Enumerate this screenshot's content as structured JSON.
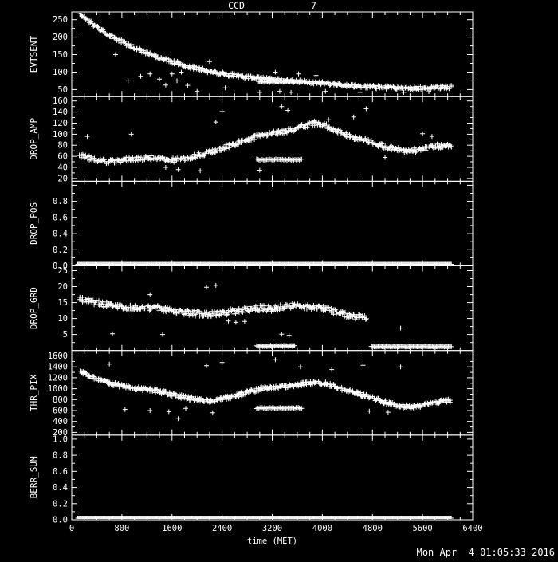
{
  "colors": {
    "background": "#000000",
    "foreground": "#ffffff"
  },
  "chart_data": {
    "type": "scatter",
    "title": "CCD            7",
    "xlabel": "time (MET)",
    "timestamp": "Mon Apr  4 01:05:33 2016",
    "x_range": [
      0,
      6400
    ],
    "x_ticks": [
      0,
      800,
      1600,
      2400,
      3200,
      4000,
      4800,
      5600,
      6400
    ],
    "marker": "plus",
    "grid": false,
    "legend": false,
    "render": {
      "step": 25,
      "per_step": 2,
      "marker_arm": 3
    },
    "panels": [
      {
        "name": "EVTSENT",
        "ylim": [
          30,
          272
        ],
        "yticks": [
          50,
          100,
          150,
          200,
          250
        ],
        "ytick_labels": [
          "50",
          "100",
          "150",
          "200",
          "250"
        ],
        "jitter": 5,
        "trend": [
          [
            130,
            268
          ],
          [
            250,
            248
          ],
          [
            400,
            228
          ],
          [
            550,
            210
          ],
          [
            700,
            196
          ],
          [
            850,
            183
          ],
          [
            1000,
            170
          ],
          [
            1150,
            158
          ],
          [
            1300,
            148
          ],
          [
            1450,
            138
          ],
          [
            1600,
            130
          ],
          [
            1750,
            122
          ],
          [
            1900,
            115
          ],
          [
            2050,
            108
          ],
          [
            2200,
            102
          ],
          [
            2350,
            97
          ],
          [
            2500,
            93
          ],
          [
            2650,
            89
          ],
          [
            2800,
            86
          ],
          [
            2950,
            83
          ],
          [
            3100,
            80
          ],
          [
            3250,
            78
          ],
          [
            3400,
            76
          ],
          [
            3550,
            74
          ],
          [
            3700,
            72
          ],
          [
            3850,
            70
          ],
          [
            4000,
            68
          ],
          [
            4150,
            66
          ],
          [
            4300,
            64
          ],
          [
            4450,
            62
          ],
          [
            4600,
            60
          ],
          [
            4750,
            58
          ],
          [
            4900,
            57
          ],
          [
            5050,
            56
          ],
          [
            5200,
            55
          ],
          [
            5350,
            54
          ],
          [
            5500,
            54
          ],
          [
            5650,
            55
          ],
          [
            5800,
            56
          ],
          [
            5950,
            57
          ],
          [
            6060,
            58
          ]
        ],
        "outliers": [
          [
            700,
            150
          ],
          [
            900,
            75
          ],
          [
            1100,
            88
          ],
          [
            1250,
            95
          ],
          [
            1400,
            80
          ],
          [
            1500,
            63
          ],
          [
            1600,
            95
          ],
          [
            1680,
            75
          ],
          [
            1750,
            100
          ],
          [
            1850,
            62
          ],
          [
            2000,
            45
          ],
          [
            2200,
            130
          ],
          [
            2450,
            55
          ],
          [
            3000,
            42
          ],
          [
            3250,
            100
          ],
          [
            3320,
            45
          ],
          [
            3500,
            42
          ],
          [
            3620,
            95
          ],
          [
            3900,
            90
          ],
          [
            4050,
            45
          ],
          [
            4600,
            42
          ],
          [
            5300,
            42
          ],
          [
            5700,
            44
          ]
        ],
        "bands": [
          {
            "x0": 2980,
            "x1": 3640,
            "y": 72,
            "step": 18,
            "jitter": 1.5
          }
        ]
      },
      {
        "name": "DROP_AMP",
        "ylim": [
          15,
          168
        ],
        "yticks": [
          20,
          40,
          60,
          80,
          100,
          120,
          140,
          160
        ],
        "ytick_labels": [
          "20",
          "40",
          "60",
          "80",
          "100",
          "120",
          "140",
          "160"
        ],
        "jitter": 4,
        "trend": [
          [
            130,
            62
          ],
          [
            280,
            57
          ],
          [
            430,
            52
          ],
          [
            580,
            50
          ],
          [
            730,
            51
          ],
          [
            880,
            54
          ],
          [
            1030,
            56
          ],
          [
            1180,
            57
          ],
          [
            1330,
            57
          ],
          [
            1480,
            55
          ],
          [
            1630,
            53
          ],
          [
            1780,
            55
          ],
          [
            1930,
            59
          ],
          [
            2080,
            64
          ],
          [
            2230,
            69
          ],
          [
            2380,
            74
          ],
          [
            2530,
            79
          ],
          [
            2680,
            85
          ],
          [
            2830,
            91
          ],
          [
            2980,
            97
          ],
          [
            3130,
            100
          ],
          [
            3280,
            103
          ],
          [
            3430,
            106
          ],
          [
            3580,
            110
          ],
          [
            3730,
            116
          ],
          [
            3880,
            120
          ],
          [
            4030,
            116
          ],
          [
            4180,
            109
          ],
          [
            4330,
            101
          ],
          [
            4480,
            95
          ],
          [
            4630,
            90
          ],
          [
            4780,
            85
          ],
          [
            4930,
            80
          ],
          [
            5080,
            75
          ],
          [
            5230,
            72
          ],
          [
            5380,
            70
          ],
          [
            5530,
            72
          ],
          [
            5680,
            75
          ],
          [
            5830,
            78
          ],
          [
            6060,
            80
          ]
        ],
        "outliers": [
          [
            250,
            96
          ],
          [
            950,
            100
          ],
          [
            1500,
            40
          ],
          [
            1700,
            36
          ],
          [
            2050,
            34
          ],
          [
            2300,
            122
          ],
          [
            2400,
            141
          ],
          [
            3000,
            35
          ],
          [
            3350,
            150
          ],
          [
            3450,
            143
          ],
          [
            4100,
            126
          ],
          [
            4500,
            131
          ],
          [
            4700,
            146
          ],
          [
            5000,
            58
          ],
          [
            5600,
            101
          ],
          [
            5750,
            96
          ]
        ],
        "bands": [
          {
            "x0": 2950,
            "x1": 3680,
            "y": 54,
            "step": 18,
            "jitter": 1.2
          }
        ]
      },
      {
        "name": "DROP_POS",
        "ylim": [
          0,
          1.05
        ],
        "yticks": [
          0,
          0.2,
          0.4,
          0.6,
          0.8,
          1.0
        ],
        "ytick_labels": [
          "0.0",
          "0.2",
          "0.4",
          "0.6",
          "0.8",
          ""
        ],
        "jitter": 0,
        "trend": [],
        "outliers": [],
        "bands": [
          {
            "x0": 95,
            "x1": 6060,
            "y": 0.02,
            "step": 14,
            "jitter": 0
          }
        ]
      },
      {
        "name": "DROP_GRD",
        "ylim": [
          0,
          26.5
        ],
        "yticks": [
          5,
          10,
          15,
          20,
          25
        ],
        "ytick_labels": [
          "5",
          "10",
          "15",
          "20",
          "25"
        ],
        "jitter": 0.9,
        "trend": [
          [
            130,
            16
          ],
          [
            300,
            15.2
          ],
          [
            470,
            14.6
          ],
          [
            640,
            14.1
          ],
          [
            810,
            13.6
          ],
          [
            980,
            13.2
          ],
          [
            1150,
            13.2
          ],
          [
            1320,
            13.4
          ],
          [
            1490,
            12.8
          ],
          [
            1660,
            12.2
          ],
          [
            1830,
            12.0
          ],
          [
            2000,
            11.6
          ],
          [
            2170,
            11.2
          ],
          [
            2340,
            11.6
          ],
          [
            2510,
            12.1
          ],
          [
            2680,
            12.6
          ],
          [
            2850,
            13.0
          ],
          [
            3020,
            13.3
          ],
          [
            3190,
            13.1
          ],
          [
            3360,
            13.6
          ],
          [
            3530,
            14.0
          ],
          [
            3700,
            14.0
          ],
          [
            3870,
            13.6
          ],
          [
            4040,
            13.0
          ],
          [
            4210,
            12.1
          ],
          [
            4380,
            11.2
          ],
          [
            4550,
            10.6
          ],
          [
            4720,
            10.1
          ]
        ],
        "outliers": [
          [
            650,
            5.2
          ],
          [
            1250,
            17.5
          ],
          [
            1450,
            5.0
          ],
          [
            2150,
            19.8
          ],
          [
            2300,
            20.4
          ],
          [
            2500,
            9.2
          ],
          [
            2620,
            8.8
          ],
          [
            2760,
            9.1
          ],
          [
            3350,
            5.1
          ],
          [
            3470,
            4.7
          ],
          [
            5250,
            7.0
          ]
        ],
        "bands": [
          {
            "x0": 2950,
            "x1": 3560,
            "y": 1.4,
            "step": 16,
            "jitter": 0.2
          },
          {
            "x0": 4780,
            "x1": 6060,
            "y": 1.2,
            "step": 16,
            "jitter": 0.1
          }
        ]
      },
      {
        "name": "THR_PIX",
        "ylim": [
          150,
          1700
        ],
        "yticks": [
          200,
          400,
          600,
          800,
          1000,
          1200,
          1400,
          1600
        ],
        "ytick_labels": [
          "200",
          "400",
          "600",
          "800",
          "1000",
          "1200",
          "1400",
          "1600"
        ],
        "jitter": 35,
        "trend": [
          [
            130,
            1320
          ],
          [
            290,
            1230
          ],
          [
            450,
            1155
          ],
          [
            610,
            1100
          ],
          [
            770,
            1055
          ],
          [
            930,
            1020
          ],
          [
            1090,
            1000
          ],
          [
            1250,
            975
          ],
          [
            1410,
            945
          ],
          [
            1570,
            905
          ],
          [
            1730,
            860
          ],
          [
            1890,
            825
          ],
          [
            2050,
            795
          ],
          [
            2210,
            785
          ],
          [
            2370,
            815
          ],
          [
            2530,
            850
          ],
          [
            2690,
            900
          ],
          [
            2850,
            950
          ],
          [
            3010,
            1000
          ],
          [
            3170,
            1020
          ],
          [
            3330,
            1035
          ],
          [
            3490,
            1055
          ],
          [
            3650,
            1080
          ],
          [
            3810,
            1105
          ],
          [
            3970,
            1115
          ],
          [
            4130,
            1070
          ],
          [
            4290,
            1010
          ],
          [
            4450,
            950
          ],
          [
            4610,
            895
          ],
          [
            4770,
            840
          ],
          [
            4930,
            780
          ],
          [
            5090,
            720
          ],
          [
            5250,
            685
          ],
          [
            5410,
            665
          ],
          [
            5570,
            685
          ],
          [
            5730,
            725
          ],
          [
            5890,
            765
          ],
          [
            6060,
            790
          ]
        ],
        "outliers": [
          [
            600,
            1450
          ],
          [
            850,
            620
          ],
          [
            1250,
            600
          ],
          [
            1550,
            580
          ],
          [
            1700,
            450
          ],
          [
            1820,
            640
          ],
          [
            2150,
            1420
          ],
          [
            2250,
            560
          ],
          [
            2400,
            1480
          ],
          [
            3250,
            1530
          ],
          [
            3650,
            1400
          ],
          [
            4150,
            1350
          ],
          [
            4650,
            1430
          ],
          [
            4750,
            590
          ],
          [
            5050,
            570
          ],
          [
            5250,
            1400
          ]
        ],
        "bands": [
          {
            "x0": 2950,
            "x1": 3680,
            "y": 645,
            "step": 18,
            "jitter": 10
          }
        ]
      },
      {
        "name": "BERR_SUM",
        "ylim": [
          0,
          1.05
        ],
        "yticks": [
          0,
          0.2,
          0.4,
          0.6,
          0.8,
          1.0
        ],
        "ytick_labels": [
          "0.0",
          "0.2",
          "0.4",
          "0.6",
          "0.8",
          "1.0"
        ],
        "jitter": 0,
        "trend": [],
        "outliers": [],
        "bands": [
          {
            "x0": 95,
            "x1": 6060,
            "y": 0.02,
            "step": 14,
            "jitter": 0
          }
        ]
      }
    ]
  }
}
